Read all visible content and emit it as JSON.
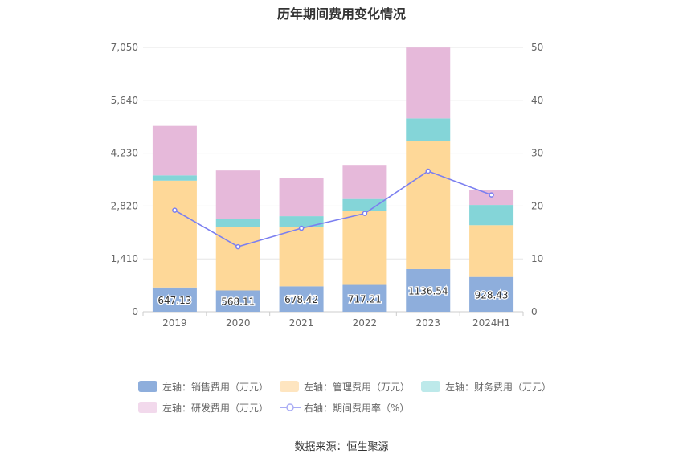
{
  "chart_data": {
    "type": "bar",
    "title": "历年期间费用变化情况",
    "categories": [
      "2019",
      "2020",
      "2021",
      "2022",
      "2023",
      "2024H1"
    ],
    "left_axis": {
      "ylim": [
        0,
        7050
      ],
      "ticks": [
        0,
        1410,
        2820,
        4230,
        5640,
        7050
      ],
      "tick_labels": [
        "0",
        "1,410",
        "2,820",
        "4,230",
        "5,640",
        "7,050"
      ]
    },
    "right_axis": {
      "ylim": [
        0,
        50
      ],
      "ticks": [
        0,
        10,
        20,
        30,
        40,
        50
      ],
      "tick_labels": [
        "0",
        "10",
        "20",
        "30",
        "40",
        "50"
      ]
    },
    "grid": true,
    "legend_position": "bottom",
    "stacked": true,
    "series": [
      {
        "name": "左轴：销售费用（万元）",
        "axis": "left",
        "color": "#8eaedc",
        "values": [
          647.13,
          568.11,
          678.42,
          717.21,
          1136.54,
          928.43
        ],
        "data_labels": [
          "647.13",
          "568.11",
          "678.42",
          "717.21",
          "1136.54",
          "928.43"
        ]
      },
      {
        "name": "左轴：管理费用（万元）",
        "axis": "left",
        "color": "#fed898",
        "values": [
          2850,
          1700,
          1580,
          1970,
          3420,
          1380
        ]
      },
      {
        "name": "左轴：财务费用（万元）",
        "axis": "left",
        "color": "#84d5d8",
        "values": [
          140,
          200,
          290,
          320,
          600,
          540
        ]
      },
      {
        "name": "左轴：研发费用（万元）",
        "axis": "left",
        "color": "#e6b9da",
        "values": [
          1320,
          1300,
          1020,
          910,
          1890,
          400
        ]
      },
      {
        "name": "右轴：期间费用率（%）",
        "axis": "right",
        "type": "line",
        "color": "#7b7ff0",
        "values": [
          19.2,
          12.3,
          15.8,
          18.6,
          26.6,
          22.1
        ]
      }
    ]
  },
  "source_text": "数据来源：恒生聚源"
}
